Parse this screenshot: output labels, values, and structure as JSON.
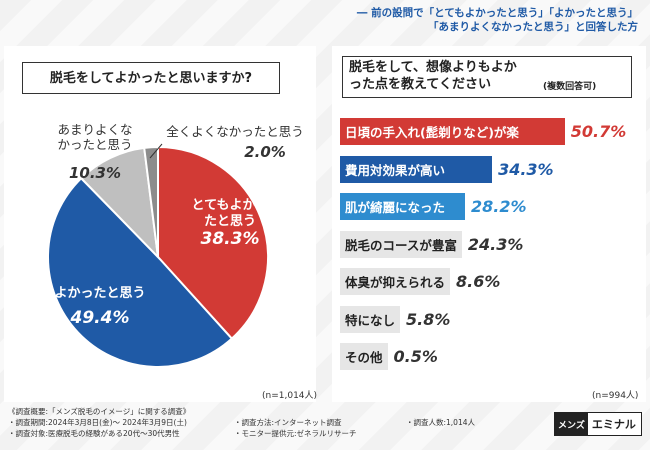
{
  "header_note": {
    "line1": "前の設問で「とてもよかったと思う」「よかったと思う」",
    "line2": "「あまりよくなかったと思う」と回答した方"
  },
  "chart_data": [
    {
      "type": "pie",
      "title": "脱毛をしてよかったと思いますか?",
      "n_label": "(n=1,014人)",
      "slices": [
        {
          "label": "とてもよかったと思う",
          "value": 38.3,
          "value_label": "38.3%",
          "color": "#d23a35"
        },
        {
          "label": "よかったと思う",
          "value": 49.4,
          "value_label": "49.4%",
          "color": "#1f5aa6"
        },
        {
          "label": "あまりよくなかったと思う",
          "value": 10.3,
          "value_label": "10.3%",
          "color": "#bfbfbf"
        },
        {
          "label": "全くよくなかったと思う",
          "value": 2.0,
          "value_label": "2.0%",
          "color": "#8c8c8c"
        }
      ]
    },
    {
      "type": "bar",
      "title": "脱毛をして、想像よりもよかった点を教えてください",
      "subtitle": "(複数回答可)",
      "n_label": "(n=994人)",
      "xlim": [
        0,
        60
      ],
      "categories": [
        "日頃の手入れ(髭剃りなど)が楽",
        "費用対効果が高い",
        "肌が綺麗になった",
        "脱毛のコースが豊富",
        "体臭が抑えられる",
        "特になし",
        "その他"
      ],
      "values": [
        50.7,
        34.3,
        28.2,
        24.3,
        8.6,
        5.8,
        0.5
      ],
      "value_labels": [
        "50.7%",
        "34.3%",
        "28.2%",
        "24.3%",
        "8.6%",
        "5.8%",
        "0.5%"
      ],
      "colors": [
        "#d23a35",
        "#1f5aa6",
        "#2e8ccf",
        "#e6e6e6",
        "#e6e6e6",
        "#e6e6e6",
        "#e6e6e6"
      ]
    }
  ],
  "footer": {
    "summary": "《調査概要:「メンズ脱毛のイメージ」に関する調査》",
    "period": "・調査期間:2024年3月8日(金)〜 2024年3月9日(土)",
    "method": "・調査方法:インターネット調査",
    "count": "・調査人数:1,014人",
    "target": "・調査対象:医療脱毛の経験がある20代〜30代男性",
    "provider": "・モニター提供元:ゼネラルリサーチ"
  },
  "logo": {
    "part1": "メンズ",
    "part2": "エミナル"
  }
}
